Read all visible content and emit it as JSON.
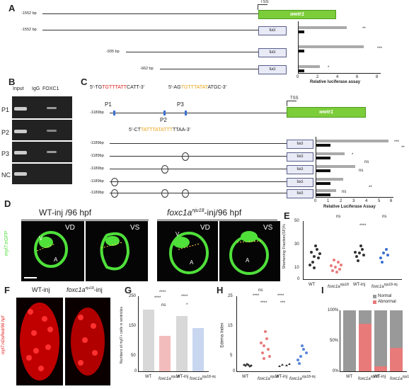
{
  "panels": {
    "A": "A",
    "B": "B",
    "C": "C",
    "D": "D",
    "E": "E",
    "F": "F",
    "G": "G",
    "H": "H",
    "I": "I"
  },
  "A": {
    "tss": "TSS",
    "gene": "wwtr1",
    "luci": "luci",
    "rows": [
      {
        "bp": "-1552 bp"
      },
      {
        "bp": "-1552 bp"
      },
      {
        "bp": "-935 bp"
      },
      {
        "bp": "-662 bp"
      }
    ],
    "xlabel": "Relative luciferase  assay",
    "ticks": [
      "0",
      "2",
      "4",
      "6",
      "8"
    ],
    "sig": [
      "**",
      "***",
      "*"
    ]
  },
  "B": {
    "cols": [
      "Input",
      "IgG",
      "FOXC1"
    ],
    "rows": [
      "P1",
      "P2",
      "P3",
      "NC"
    ]
  },
  "C": {
    "seqP1": "5'-TGTGTTTATTCATT-3'",
    "seqP1_a": "5'-TG",
    "seqP1_b": "TGTTTATT",
    "seqP1_c": "CATT-3'",
    "seqP3_a": "5'-AG",
    "seqP3_b": "TGTTTATAT",
    "seqP3_c": "ATGC-3'",
    "seqP2_a": "5'-CT",
    "seqP2_b": "TATTTATATTT",
    "seqP2_c": "TTAA-3'",
    "p1": "P1",
    "p2": "P2",
    "p3": "P3",
    "tss": "TSS",
    "gene": "wwtr1",
    "bp": "-1189bp",
    "luci": "luci",
    "xlabel": "Relative Luciferase Assay",
    "ticks": [
      "0",
      "1",
      "2",
      "3",
      "4",
      "5",
      "6"
    ],
    "sig": [
      "***",
      "**",
      "*",
      "ns",
      "ns",
      "**",
      "ns",
      "ns"
    ]
  },
  "D": {
    "title_wt": "WT-inj",
    "title_wt_b": "/96 hpf",
    "title_mut_a": "foxc1a",
    "title_mut_sup": "nju18",
    "title_mut_b": "-inj",
    "title_mut_c": "/96 hpf",
    "vd": "VD",
    "vs": "VS",
    "v": "V",
    "a": "A",
    "ylabel": "myl7:eGFP"
  },
  "E": {
    "ylabel": "Shortening Fraction(SF)%",
    "ticks": [
      "0",
      "10",
      "20",
      "30",
      "40",
      "50"
    ],
    "groups": [
      "WT",
      "foxc1a",
      "WT-inj",
      "foxc1a"
    ],
    "sup": [
      "nju18",
      "nju18-inj"
    ],
    "sig": [
      "ns",
      "****",
      "ns"
    ],
    "chart_data": {
      "type": "scatter",
      "categories": [
        "WT",
        "foxc1a nju18",
        "WT-inj",
        "foxc1a nju18-inj"
      ],
      "means": [
        18,
        10,
        19,
        18
      ],
      "ylim": [
        0,
        50
      ]
    }
  },
  "F": {
    "title_wt": "WT-inj",
    "title_mut_a": "foxc1a",
    "title_mut_sup": "nju18",
    "title_mut_b": "-inj",
    "ylabel": "myl7:nDsRed/96 hpf"
  },
  "G": {
    "ylabel": "Numbers of myl7+ cells in ventricles",
    "ticks": [
      "0",
      "50",
      "100",
      "150",
      "200",
      "250"
    ],
    "groups": [
      "WT",
      "foxc1a",
      "WT-inj",
      "foxc1a"
    ],
    "sup": [
      "nju18",
      "nju18-inj"
    ],
    "sig": [
      "****",
      "****",
      "ns",
      "****",
      "*",
      "****"
    ],
    "chart_data": {
      "type": "bar",
      "categories": [
        "WT",
        "foxc1a nju18",
        "WT-inj",
        "foxc1a nju18-inj"
      ],
      "values": [
        205,
        120,
        185,
        145
      ],
      "ylim": [
        0,
        250
      ]
    }
  },
  "H": {
    "ylabel": "Edema Index",
    "ticks": [
      "0",
      "5",
      "10",
      "15",
      "20",
      "25"
    ],
    "groups": [
      "WT",
      "foxc1a",
      "WT-inj",
      "foxc1a"
    ],
    "sup": [
      "nju18",
      "nju18-inj"
    ],
    "sig": [
      "ns",
      "****",
      "****",
      "***",
      "****"
    ],
    "chart_data": {
      "type": "scatter",
      "categories": [
        "WT",
        "foxc1a nju18",
        "WT-inj",
        "foxc1a nju18-inj"
      ],
      "means": [
        2,
        8,
        2,
        5
      ],
      "ylim": [
        0,
        25
      ]
    }
  },
  "I": {
    "legend": [
      "Normal",
      "Abnormal"
    ],
    "ticks": [
      "0%",
      "50%",
      "100%"
    ],
    "groups": [
      "WT",
      "foxc1a",
      "WT-inj",
      "foxc1a"
    ],
    "sup": [
      "nju18",
      "nju18-inj"
    ],
    "chart_data": {
      "type": "bar",
      "categories": [
        "WT",
        "foxc1a nju18",
        "WT-inj",
        "foxc1a nju18-inj"
      ],
      "series": [
        {
          "name": "Normal",
          "values": [
            100,
            22,
            92,
            62
          ]
        },
        {
          "name": "Abnormal",
          "values": [
            0,
            78,
            8,
            38
          ]
        }
      ],
      "ylim": [
        0,
        100
      ]
    }
  },
  "colors": {
    "gene": "#7ccd3a",
    "red_seq": "#e02020",
    "orange_seq": "#e8a21a",
    "site": "#3a6fd0",
    "gfp": "#4fe03a",
    "dsred": "#e01010",
    "abnormal": "#e87a7a",
    "normal": "#999999"
  }
}
